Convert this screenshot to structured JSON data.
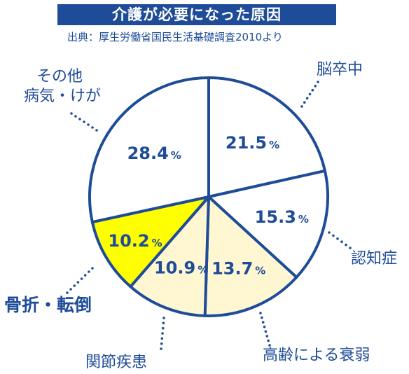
{
  "title": "介護が必要になった原因",
  "source": "出典：厚生労働省国民生活基礎調査2010より",
  "colors": {
    "accent": "#1e4c98",
    "highlight": "#ffff00",
    "light": "#fff7d1",
    "white": "#ffffff"
  },
  "chart_data": {
    "type": "pie",
    "unit": "%",
    "slices": [
      {
        "label": "脳卒中",
        "value": 21.5,
        "value_text": "21.5",
        "fill": "#ffffff"
      },
      {
        "label": "認知症",
        "value": 15.3,
        "value_text": "15.3",
        "fill": "#ffffff"
      },
      {
        "label": "高齢による衰弱",
        "value": 13.7,
        "value_text": "13.7",
        "fill": "#fff7d1"
      },
      {
        "label": "関節疾患",
        "value": 10.9,
        "value_text": "10.9",
        "fill": "#fff7d1"
      },
      {
        "label": "骨折・転倒",
        "value": 10.2,
        "value_text": "10.2",
        "fill": "#ffff00"
      },
      {
        "label": "その他病気・けが",
        "label_lines": [
          "その他",
          "病気・けが"
        ],
        "value": 28.4,
        "value_text": "28.4",
        "fill": "#ffffff"
      }
    ]
  }
}
